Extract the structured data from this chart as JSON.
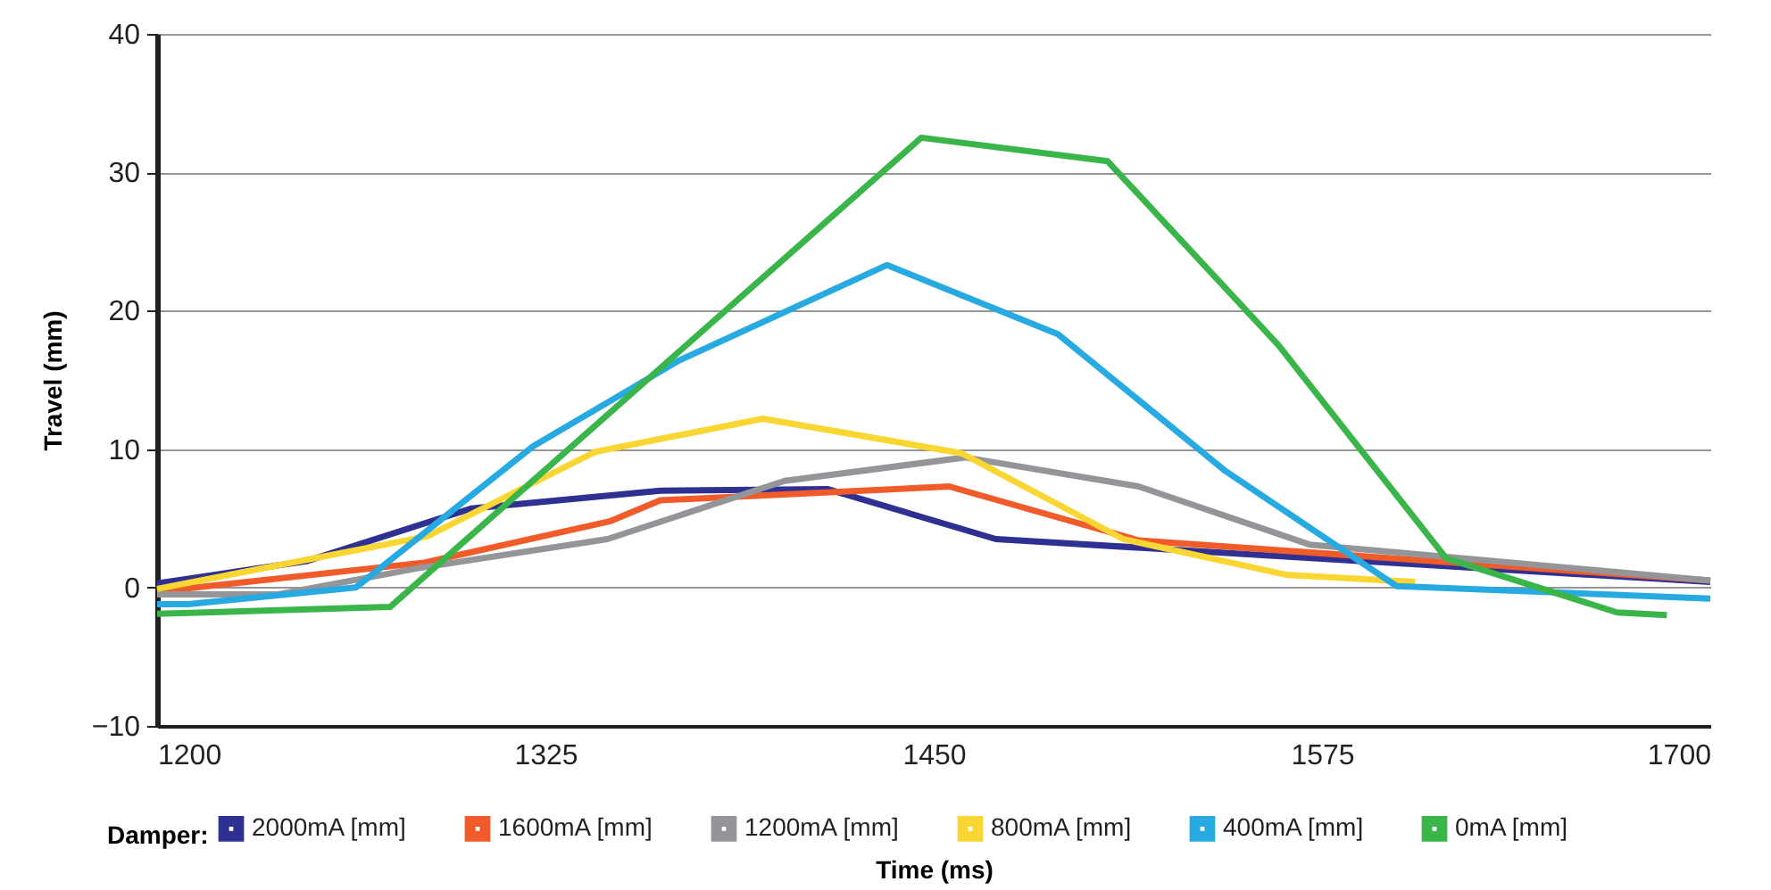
{
  "chart_data": {
    "type": "line",
    "xlabel": "Time (ms)",
    "ylabel": "Travel (mm)",
    "legend_title": "Damper:",
    "legend": "bottom",
    "grid": "y",
    "marker": "none",
    "line_style": "solid",
    "xlim": [
      1200,
      1700
    ],
    "xticks": [
      1200,
      1325,
      1450,
      1575,
      1700
    ],
    "ylim": [
      -10,
      40
    ],
    "yticks": [
      -10,
      0,
      10,
      20,
      30,
      40
    ],
    "series": [
      {
        "name": "2000mA [mm]",
        "color": "#2e3192",
        "x": [
          1200,
          1248,
          1301,
          1362,
          1416,
          1470,
          1700
        ],
        "values": [
          0.3,
          1.9,
          5.7,
          7.0,
          7.1,
          3.5,
          0.4
        ]
      },
      {
        "name": "1600mA [mm]",
        "color": "#f15a29",
        "x": [
          1200,
          1286,
          1346,
          1362,
          1455,
          1516,
          1700
        ],
        "values": [
          -0.3,
          1.8,
          4.8,
          6.3,
          7.3,
          3.4,
          0.5
        ]
      },
      {
        "name": "1200mA [mm]",
        "color": "#939598",
        "x": [
          1200,
          1239,
          1284,
          1345,
          1402,
          1460,
          1516,
          1571,
          1700
        ],
        "values": [
          -0.5,
          -0.5,
          1.4,
          3.5,
          7.7,
          9.4,
          7.3,
          3.1,
          0.5
        ]
      },
      {
        "name": "800mA [mm]",
        "color": "#f9d632",
        "x": [
          1200,
          1287,
          1341,
          1395,
          1459,
          1511,
          1564,
          1605
        ],
        "values": [
          -0.1,
          3.7,
          9.8,
          12.2,
          9.7,
          3.5,
          0.9,
          0.4
        ]
      },
      {
        "name": "400mA [mm]",
        "color": "#27aae1",
        "x": [
          1200,
          1210,
          1264,
          1321,
          1368,
          1435,
          1490,
          1544,
          1599,
          1700
        ],
        "values": [
          -1.2,
          -1.2,
          0,
          10.2,
          16.4,
          23.3,
          18.3,
          8.4,
          0.1,
          -0.8
        ]
      },
      {
        "name": "0mA [mm]",
        "color": "#39b54a",
        "x": [
          1200,
          1275,
          1446,
          1506,
          1561,
          1615,
          1670,
          1686
        ],
        "values": [
          -1.9,
          -1.4,
          32.5,
          30.8,
          17.5,
          2.1,
          -1.8,
          -2.0
        ]
      }
    ]
  }
}
